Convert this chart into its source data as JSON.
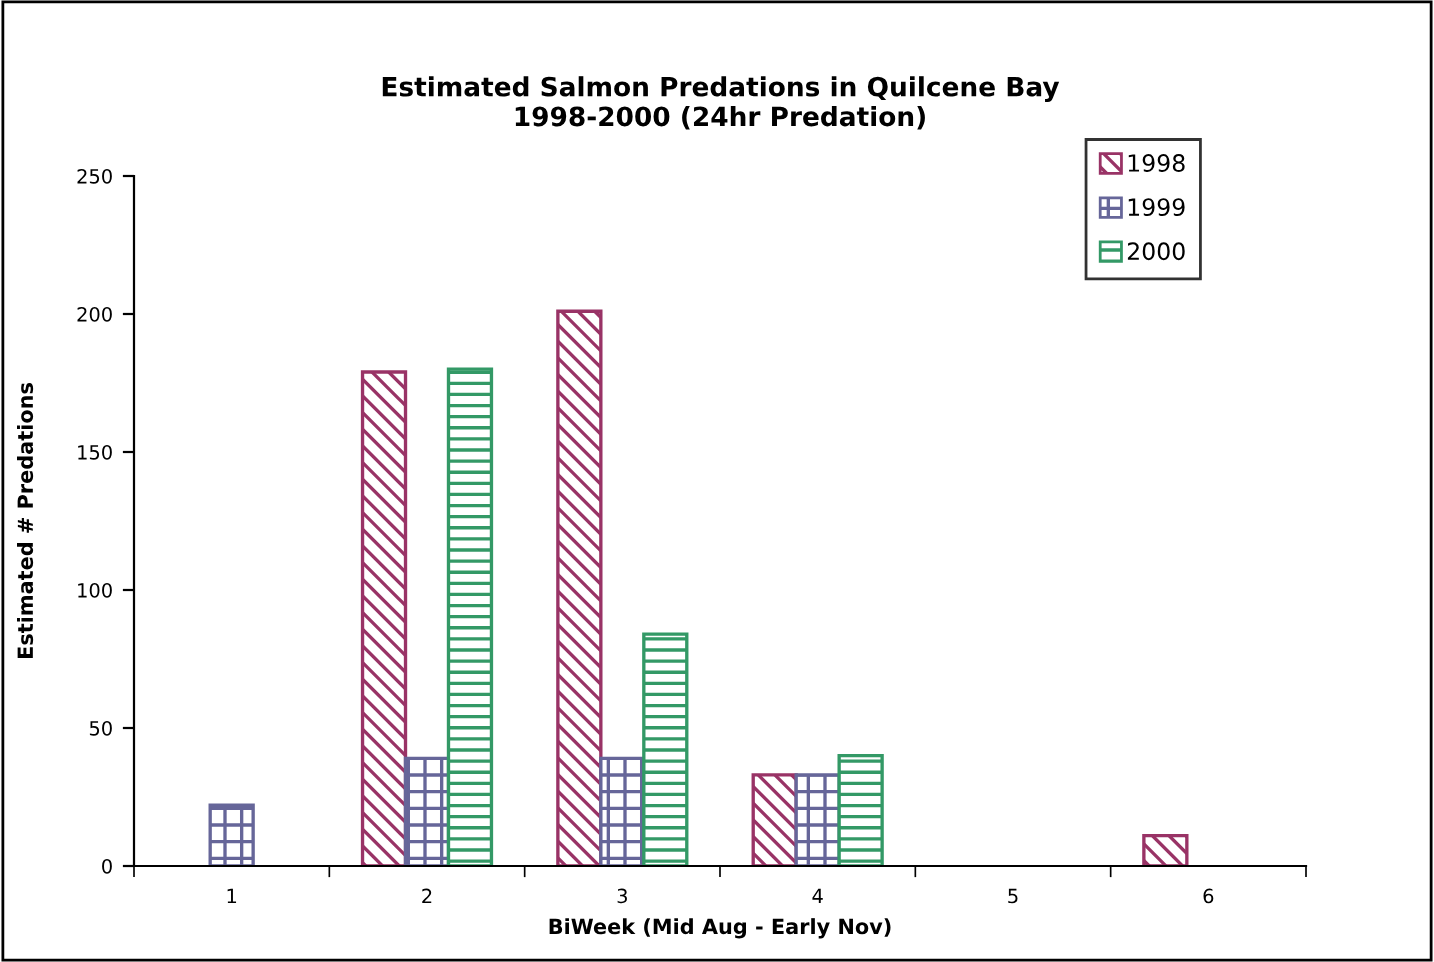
{
  "chart_data": {
    "type": "bar",
    "title": "Estimated Salmon Predations in Quilcene Bay\n1998-2000 (24hr Predation)",
    "xlabel": "BiWeek (Mid Aug - Early Nov)",
    "ylabel": "Estimated # Predations",
    "categories": [
      "1",
      "2",
      "3",
      "4",
      "5",
      "6"
    ],
    "series": [
      {
        "name": "1998",
        "color": "#993366",
        "values": [
          null,
          179,
          201,
          33,
          null,
          11
        ]
      },
      {
        "name": "1999",
        "color": "#666699",
        "values": [
          22,
          39,
          39,
          33,
          null,
          null
        ]
      },
      {
        "name": "2000",
        "color": "#339966",
        "values": [
          null,
          180,
          84,
          40,
          null,
          null
        ]
      }
    ],
    "ylim": [
      0,
      250
    ],
    "yticks": [
      0,
      50,
      100,
      150,
      200,
      250
    ],
    "grid": false,
    "legend": "top right"
  }
}
